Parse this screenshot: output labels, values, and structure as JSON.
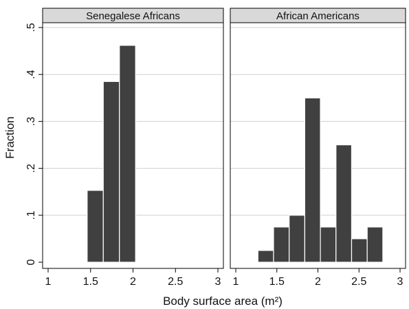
{
  "chart_data": {
    "type": "bar",
    "layout": "faceted-histogram",
    "xlabel": "Body surface area (m²)",
    "ylabel": "Fraction",
    "xlim": [
      1,
      3
    ],
    "ylim": [
      0,
      0.5
    ],
    "xticks": [
      1,
      1.5,
      2,
      2.5,
      3
    ],
    "xtick_labels": [
      "1",
      "1.5",
      "2",
      "2.5",
      "3"
    ],
    "yticks": [
      0,
      0.1,
      0.2,
      0.3,
      0.4,
      0.5
    ],
    "ytick_labels": [
      "0",
      ".1",
      ".2",
      ".3",
      ".4",
      ".5"
    ],
    "grid": true,
    "bar_color": "#404040",
    "header_color": "#d9d9d9",
    "panels": [
      {
        "title": "Senegalese Africans",
        "bins": [
          {
            "x0": 1.46,
            "x1": 1.65,
            "value": 0.153
          },
          {
            "x0": 1.65,
            "x1": 1.84,
            "value": 0.385
          },
          {
            "x0": 1.84,
            "x1": 2.03,
            "value": 0.462
          }
        ]
      },
      {
        "title": "African Americans",
        "bins": [
          {
            "x0": 1.27,
            "x1": 1.46,
            "value": 0.025
          },
          {
            "x0": 1.46,
            "x1": 1.65,
            "value": 0.075
          },
          {
            "x0": 1.65,
            "x1": 1.84,
            "value": 0.1
          },
          {
            "x0": 1.84,
            "x1": 2.03,
            "value": 0.35
          },
          {
            "x0": 2.03,
            "x1": 2.22,
            "value": 0.075
          },
          {
            "x0": 2.22,
            "x1": 2.41,
            "value": 0.25
          },
          {
            "x0": 2.41,
            "x1": 2.6,
            "value": 0.05
          },
          {
            "x0": 2.6,
            "x1": 2.79,
            "value": 0.075
          }
        ]
      }
    ]
  }
}
